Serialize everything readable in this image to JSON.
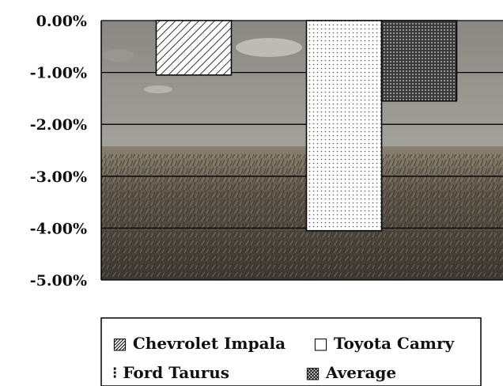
{
  "chart_data": {
    "type": "bar",
    "title": "",
    "xlabel": "",
    "ylabel": "",
    "ylim": [
      -5,
      0
    ],
    "y_ticks": [
      0,
      -1,
      -2,
      -3,
      -4,
      -5
    ],
    "y_tick_labels": [
      "0.00%",
      "-1.00%",
      "-2.00%",
      "-3.00%",
      "-4.00%",
      "-5.00%"
    ],
    "grid": true,
    "background": "cornfield photograph",
    "legend_position": "bottom",
    "series": [
      {
        "name": "Chevrolet Impala",
        "value": -1.05,
        "pattern": "diagonal-hatch"
      },
      {
        "name": "Ford Taurus",
        "value": 0,
        "pattern": "light-dots"
      },
      {
        "name": "Toyota Camry",
        "value": -4.05,
        "pattern": "fine-dots-white"
      },
      {
        "name": "Average",
        "value": -1.55,
        "pattern": "dense-dots-dark"
      }
    ]
  },
  "legend": {
    "items": [
      {
        "label": "Chevrolet Impala",
        "symbol": "▨"
      },
      {
        "label": "Toyota Camry",
        "symbol": "□"
      },
      {
        "label": "Ford Taurus",
        "symbol": "⁝"
      },
      {
        "label": "Average",
        "symbol": "▩"
      }
    ]
  }
}
